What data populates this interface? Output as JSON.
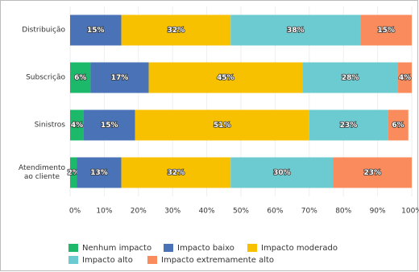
{
  "chart_data": {
    "type": "stacked-bar-horizontal",
    "categories": [
      "Distribuição",
      "Subscrição",
      "Sinistros",
      "Atendimento ao cliente"
    ],
    "series": [
      {
        "name": "Nenhum impacto",
        "color": "#1cb96a",
        "values": [
          0,
          6,
          4,
          2
        ]
      },
      {
        "name": "Impacto baixo",
        "color": "#4a72b6",
        "values": [
          15,
          17,
          15,
          13
        ]
      },
      {
        "name": "Impacto moderado",
        "color": "#f8c100",
        "values": [
          32,
          45,
          51,
          32
        ]
      },
      {
        "name": "Impacto alto",
        "color": "#6ccbd0",
        "values": [
          38,
          28,
          23,
          30
        ]
      },
      {
        "name": "Impacto extremamente alto",
        "color": "#f98b5c",
        "values": [
          15,
          4,
          6,
          23
        ]
      }
    ],
    "value_labels": [
      [
        "",
        "6%",
        "4%",
        "2%"
      ],
      [
        "15%",
        "17%",
        "15%",
        "13%"
      ],
      [
        "32%",
        "45%",
        "51%",
        "32%"
      ],
      [
        "38%",
        "28%",
        "23%",
        "30%"
      ],
      [
        "15%",
        "4%",
        "6%",
        "23%"
      ]
    ],
    "xlim": [
      0,
      100
    ],
    "xticks": [
      {
        "value": 0,
        "label": "0%"
      },
      {
        "value": 10,
        "label": "10%"
      },
      {
        "value": 20,
        "label": "20%"
      },
      {
        "value": 30,
        "label": "30%"
      },
      {
        "value": 40,
        "label": "40%"
      },
      {
        "value": 50,
        "label": "50%"
      },
      {
        "value": 60,
        "label": "60%"
      },
      {
        "value": 70,
        "label": "70%"
      },
      {
        "value": 80,
        "label": "80%"
      },
      {
        "value": 90,
        "label": "90%"
      },
      {
        "value": 100,
        "label": "100%"
      }
    ],
    "grid": true
  }
}
